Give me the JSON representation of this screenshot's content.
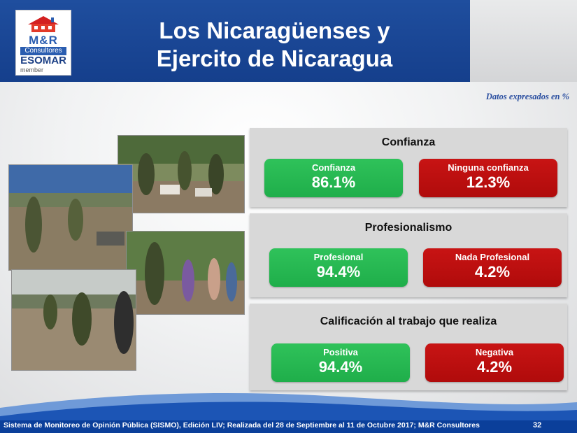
{
  "header": {
    "logo": {
      "brand": "M&R",
      "sub": "Consultores",
      "association": "ESOMAR",
      "association_sub": "member"
    },
    "title_line1": "Los Nicaragüenses y",
    "title_line2": "Ejercito de Nicaragua"
  },
  "note": "Datos expresados en  %",
  "panels": [
    {
      "title": "Confianza",
      "positive": {
        "label": "Confianza",
        "value": "86.1%"
      },
      "negative": {
        "label": "Ninguna confianza",
        "value": "12.3%"
      }
    },
    {
      "title": "Profesionalismo",
      "positive": {
        "label": "Profesional",
        "value": "94.4%"
      },
      "negative": {
        "label": "Nada Profesional",
        "value": "4.2%"
      }
    },
    {
      "title": "Calificación al trabajo que realiza",
      "positive": {
        "label": "Positiva",
        "value": "94.4%"
      },
      "negative": {
        "label": "Negativa",
        "value": "4.2%"
      }
    }
  ],
  "footer": {
    "source": "Sistema de Monitoreo de Opinión Pública (SISMO), Edición LIV; Realizada del 28 de Septiembre al 11 de Octubre 2017; M&R Consultores",
    "page": "32"
  },
  "colors": {
    "header_blue": "#1a4596",
    "positive_green": "#26b851",
    "negative_red": "#bd0f0f",
    "footer_blue": "#0b3f9a"
  }
}
